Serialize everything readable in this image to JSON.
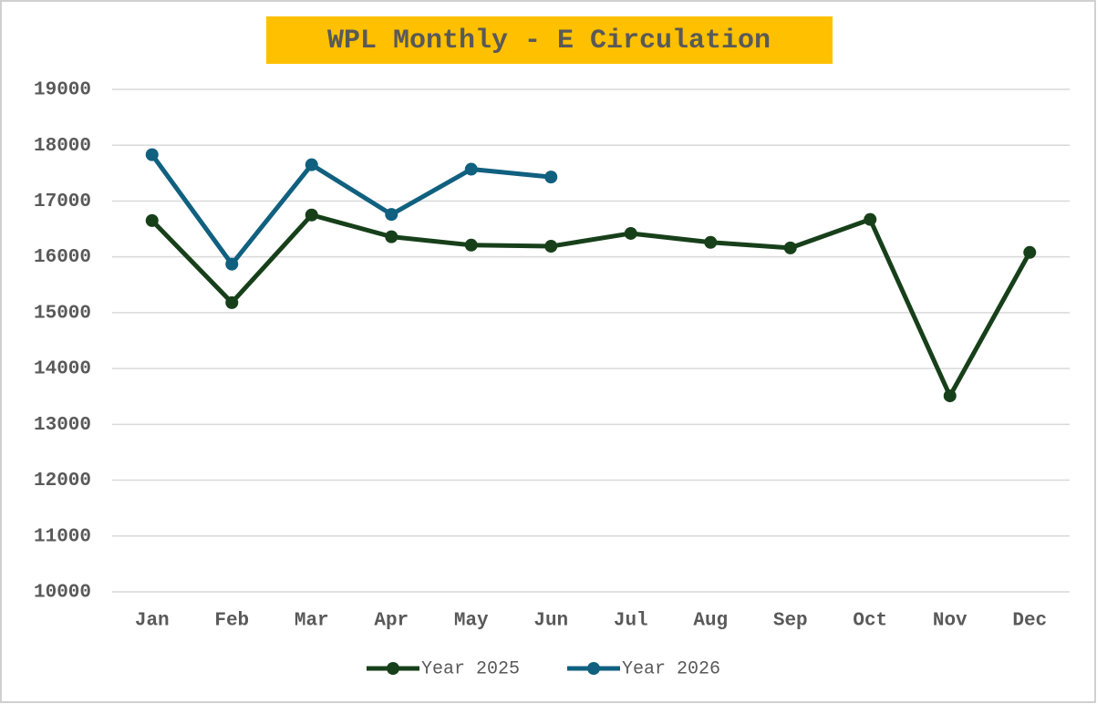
{
  "chart_data": {
    "type": "line",
    "title": "WPL Monthly - E Circulation",
    "categories": [
      "Jan",
      "Feb",
      "Mar",
      "Apr",
      "May",
      "Jun",
      "Jul",
      "Aug",
      "Sep",
      "Oct",
      "Nov",
      "Dec"
    ],
    "series": [
      {
        "name": "Year 2025",
        "color": "#17401a",
        "values": [
          16650,
          15180,
          16750,
          16360,
          16210,
          16190,
          16420,
          16260,
          16160,
          16670,
          13510,
          16080
        ]
      },
      {
        "name": "Year 2026",
        "color": "#10607f",
        "values": [
          17830,
          15870,
          17650,
          16760,
          17570,
          17430,
          null,
          null,
          null,
          null,
          null,
          null
        ]
      }
    ],
    "ylim": [
      10000,
      19000
    ],
    "yticks": [
      10000,
      11000,
      12000,
      13000,
      14000,
      15000,
      16000,
      17000,
      18000,
      19000
    ],
    "grid": true,
    "legend": "bottom"
  }
}
